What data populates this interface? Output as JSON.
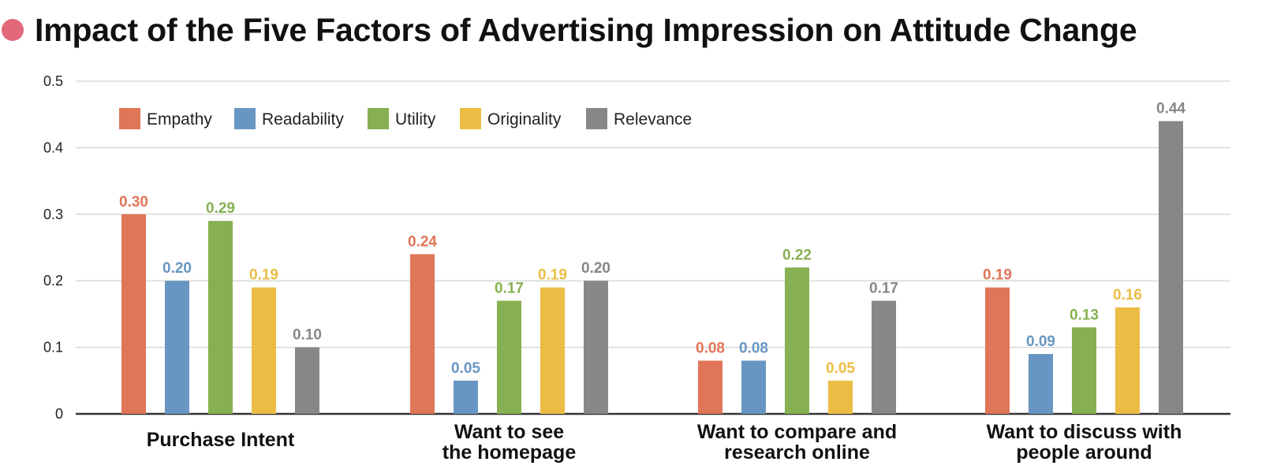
{
  "title": "Impact of the Five Factors of Advertising Impression on Attitude Change",
  "colors": {
    "title_dot": "#e2697a",
    "Empathy": "#e07558",
    "Readability": "#6896c2",
    "Utility": "#86b051",
    "Originality": "#ebbd44",
    "Relevance": "#878787",
    "grid": "#d9d9d9",
    "axis": "#333333"
  },
  "chart_data": {
    "type": "bar",
    "title": "Impact of the Five Factors of Advertising Impression on Attitude Change",
    "xlabel": "",
    "ylabel": "",
    "ylim": [
      0,
      0.5
    ],
    "yticks": [
      "0",
      "0.1",
      "0.2",
      "0.3",
      "0.4",
      "0.5"
    ],
    "grid": true,
    "legend_position": "top-left",
    "categories": [
      [
        "Purchase Intent"
      ],
      [
        "Want to see",
        "the homepage"
      ],
      [
        "Want to compare and",
        "research online"
      ],
      [
        "Want to discuss with",
        "people around"
      ]
    ],
    "series": [
      {
        "name": "Empathy",
        "values": [
          0.3,
          0.24,
          0.08,
          0.19
        ],
        "labels": [
          "0.30",
          "0.24",
          "0.08",
          "0.19"
        ]
      },
      {
        "name": "Readability",
        "values": [
          0.2,
          0.05,
          0.08,
          0.09
        ],
        "labels": [
          "0.20",
          "0.05",
          "0.08",
          "0.09"
        ]
      },
      {
        "name": "Utility",
        "values": [
          0.29,
          0.17,
          0.22,
          0.13
        ],
        "labels": [
          "0.29",
          "0.17",
          "0.22",
          "0.13"
        ]
      },
      {
        "name": "Originality",
        "values": [
          0.19,
          0.19,
          0.05,
          0.16
        ],
        "labels": [
          "0.19",
          "0.19",
          "0.05",
          "0.16"
        ]
      },
      {
        "name": "Relevance",
        "values": [
          0.1,
          0.2,
          0.17,
          0.44
        ],
        "labels": [
          "0.10",
          "0.20",
          "0.17",
          "0.44"
        ]
      }
    ]
  }
}
